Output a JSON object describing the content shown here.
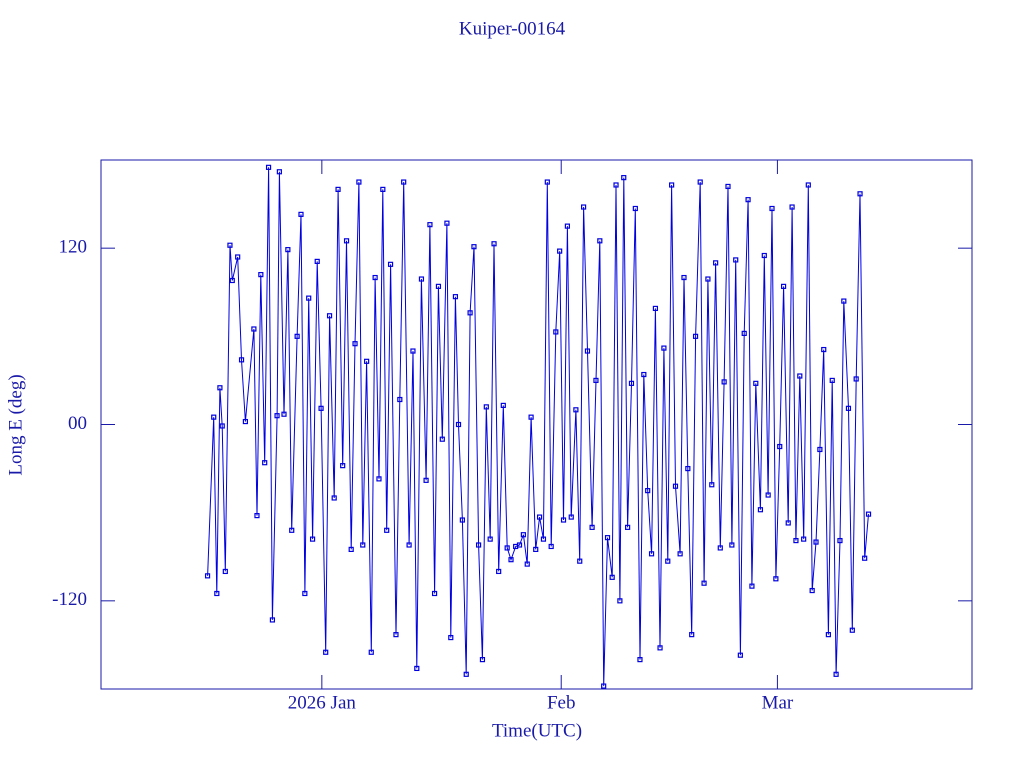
{
  "chart_data": {
    "type": "line",
    "title": "Kuiper-00164",
    "xlabel": "Time(UTC)",
    "ylabel": "Long E (deg)",
    "color": "#0000e0",
    "xlim": [
      -28.6,
      84.2
    ],
    "xticks": [
      {
        "value": 0,
        "label": "2026 Jan"
      },
      {
        "value": 31,
        "label": "Feb"
      },
      {
        "value": 59,
        "label": "Mar"
      }
    ],
    "ylim": [
      -180,
      180
    ],
    "yticks": [
      120,
      {
        "value": 0,
        "label": "00"
      },
      -120
    ],
    "x": [
      -14.8,
      -14.0,
      -13.6,
      -13.2,
      -12.9,
      -12.5,
      -11.9,
      -11.6,
      -10.9,
      -10.4,
      -9.9,
      -8.8,
      -8.4,
      -7.9,
      -7.4,
      -6.9,
      -6.4,
      -5.8,
      -5.5,
      -4.9,
      -4.4,
      -3.9,
      -3.2,
      -2.7,
      -2.2,
      -1.7,
      -1.2,
      -0.6,
      -0.1,
      0.5,
      1.0,
      1.6,
      2.1,
      2.7,
      3.2,
      3.8,
      4.3,
      4.8,
      5.3,
      5.8,
      6.4,
      6.9,
      7.4,
      7.9,
      8.4,
      8.9,
      9.6,
      10.1,
      10.6,
      11.3,
      11.8,
      12.3,
      12.9,
      13.5,
      14.0,
      14.6,
      15.1,
      15.6,
      16.2,
      16.7,
      17.3,
      17.7,
      18.2,
      18.7,
      19.2,
      19.7,
      20.3,
      20.8,
      21.3,
      21.8,
      22.3,
      22.9,
      23.5,
      24.0,
      24.5,
      25.1,
      25.6,
      26.1,
      26.6,
      27.1,
      27.7,
      28.2,
      28.7,
      29.2,
      29.7,
      30.3,
      30.8,
      31.3,
      31.8,
      32.3,
      32.9,
      33.4,
      33.9,
      34.4,
      35.0,
      35.5,
      36.0,
      36.5,
      37.0,
      37.6,
      38.1,
      38.6,
      39.1,
      39.6,
      40.1,
      40.6,
      41.2,
      41.7,
      42.2,
      42.7,
      43.2,
      43.8,
      44.3,
      44.8,
      45.3,
      45.8,
      46.4,
      46.9,
      47.4,
      47.9,
      48.4,
      49.0,
      49.5,
      50.0,
      50.5,
      51.0,
      51.6,
      52.1,
      52.6,
      53.1,
      53.6,
      54.2,
      54.7,
      55.2,
      55.7,
      56.2,
      56.8,
      57.3,
      57.8,
      58.3,
      58.8,
      59.3,
      59.8,
      60.4,
      60.9,
      61.4,
      61.9,
      62.4,
      63.0,
      63.5,
      64.0,
      64.5,
      65.0,
      65.6,
      66.1,
      66.6,
      67.1,
      67.6,
      68.2,
      68.7,
      69.2,
      69.7,
      70.3,
      70.8
    ],
    "values": [
      -103,
      5,
      -115,
      25,
      -1,
      -100,
      122,
      98,
      114,
      44,
      2,
      65,
      -62,
      102,
      -26,
      175,
      -133,
      6,
      172,
      7,
      119,
      -72,
      60,
      143,
      -115,
      86,
      -78,
      111,
      11,
      -155,
      74,
      -50,
      160,
      -28,
      125,
      -85,
      55,
      165,
      -82,
      43,
      -155,
      100,
      -37,
      160,
      -72,
      109,
      -143,
      17,
      165,
      -82,
      50,
      -166,
      99,
      -38,
      136,
      -115,
      94,
      -10,
      137,
      -145,
      87,
      0,
      -65,
      -170,
      76,
      121,
      -82,
      -160,
      12,
      -78,
      123,
      -100,
      13,
      -84,
      -92,
      -83,
      -82,
      -75,
      -95,
      5,
      -85,
      -63,
      -78,
      165,
      -83,
      63,
      118,
      -65,
      135,
      -63,
      10,
      -93,
      148,
      50,
      -70,
      30,
      125,
      -178,
      -77,
      -104,
      163,
      -120,
      168,
      -70,
      28,
      147,
      -160,
      34,
      -45,
      -88,
      79,
      -152,
      52,
      -93,
      163,
      -42,
      -88,
      100,
      -30,
      -143,
      60,
      165,
      -108,
      99,
      -41,
      110,
      -84,
      29,
      162,
      -82,
      112,
      -157,
      62,
      153,
      -110,
      28,
      -58,
      115,
      -48,
      147,
      -105,
      -15,
      94,
      -67,
      148,
      -79,
      33,
      -78,
      163,
      -113,
      -80,
      -17,
      51,
      -143,
      30,
      -170,
      -79,
      84,
      11,
      -140,
      31,
      157,
      -91,
      -61
    ]
  }
}
